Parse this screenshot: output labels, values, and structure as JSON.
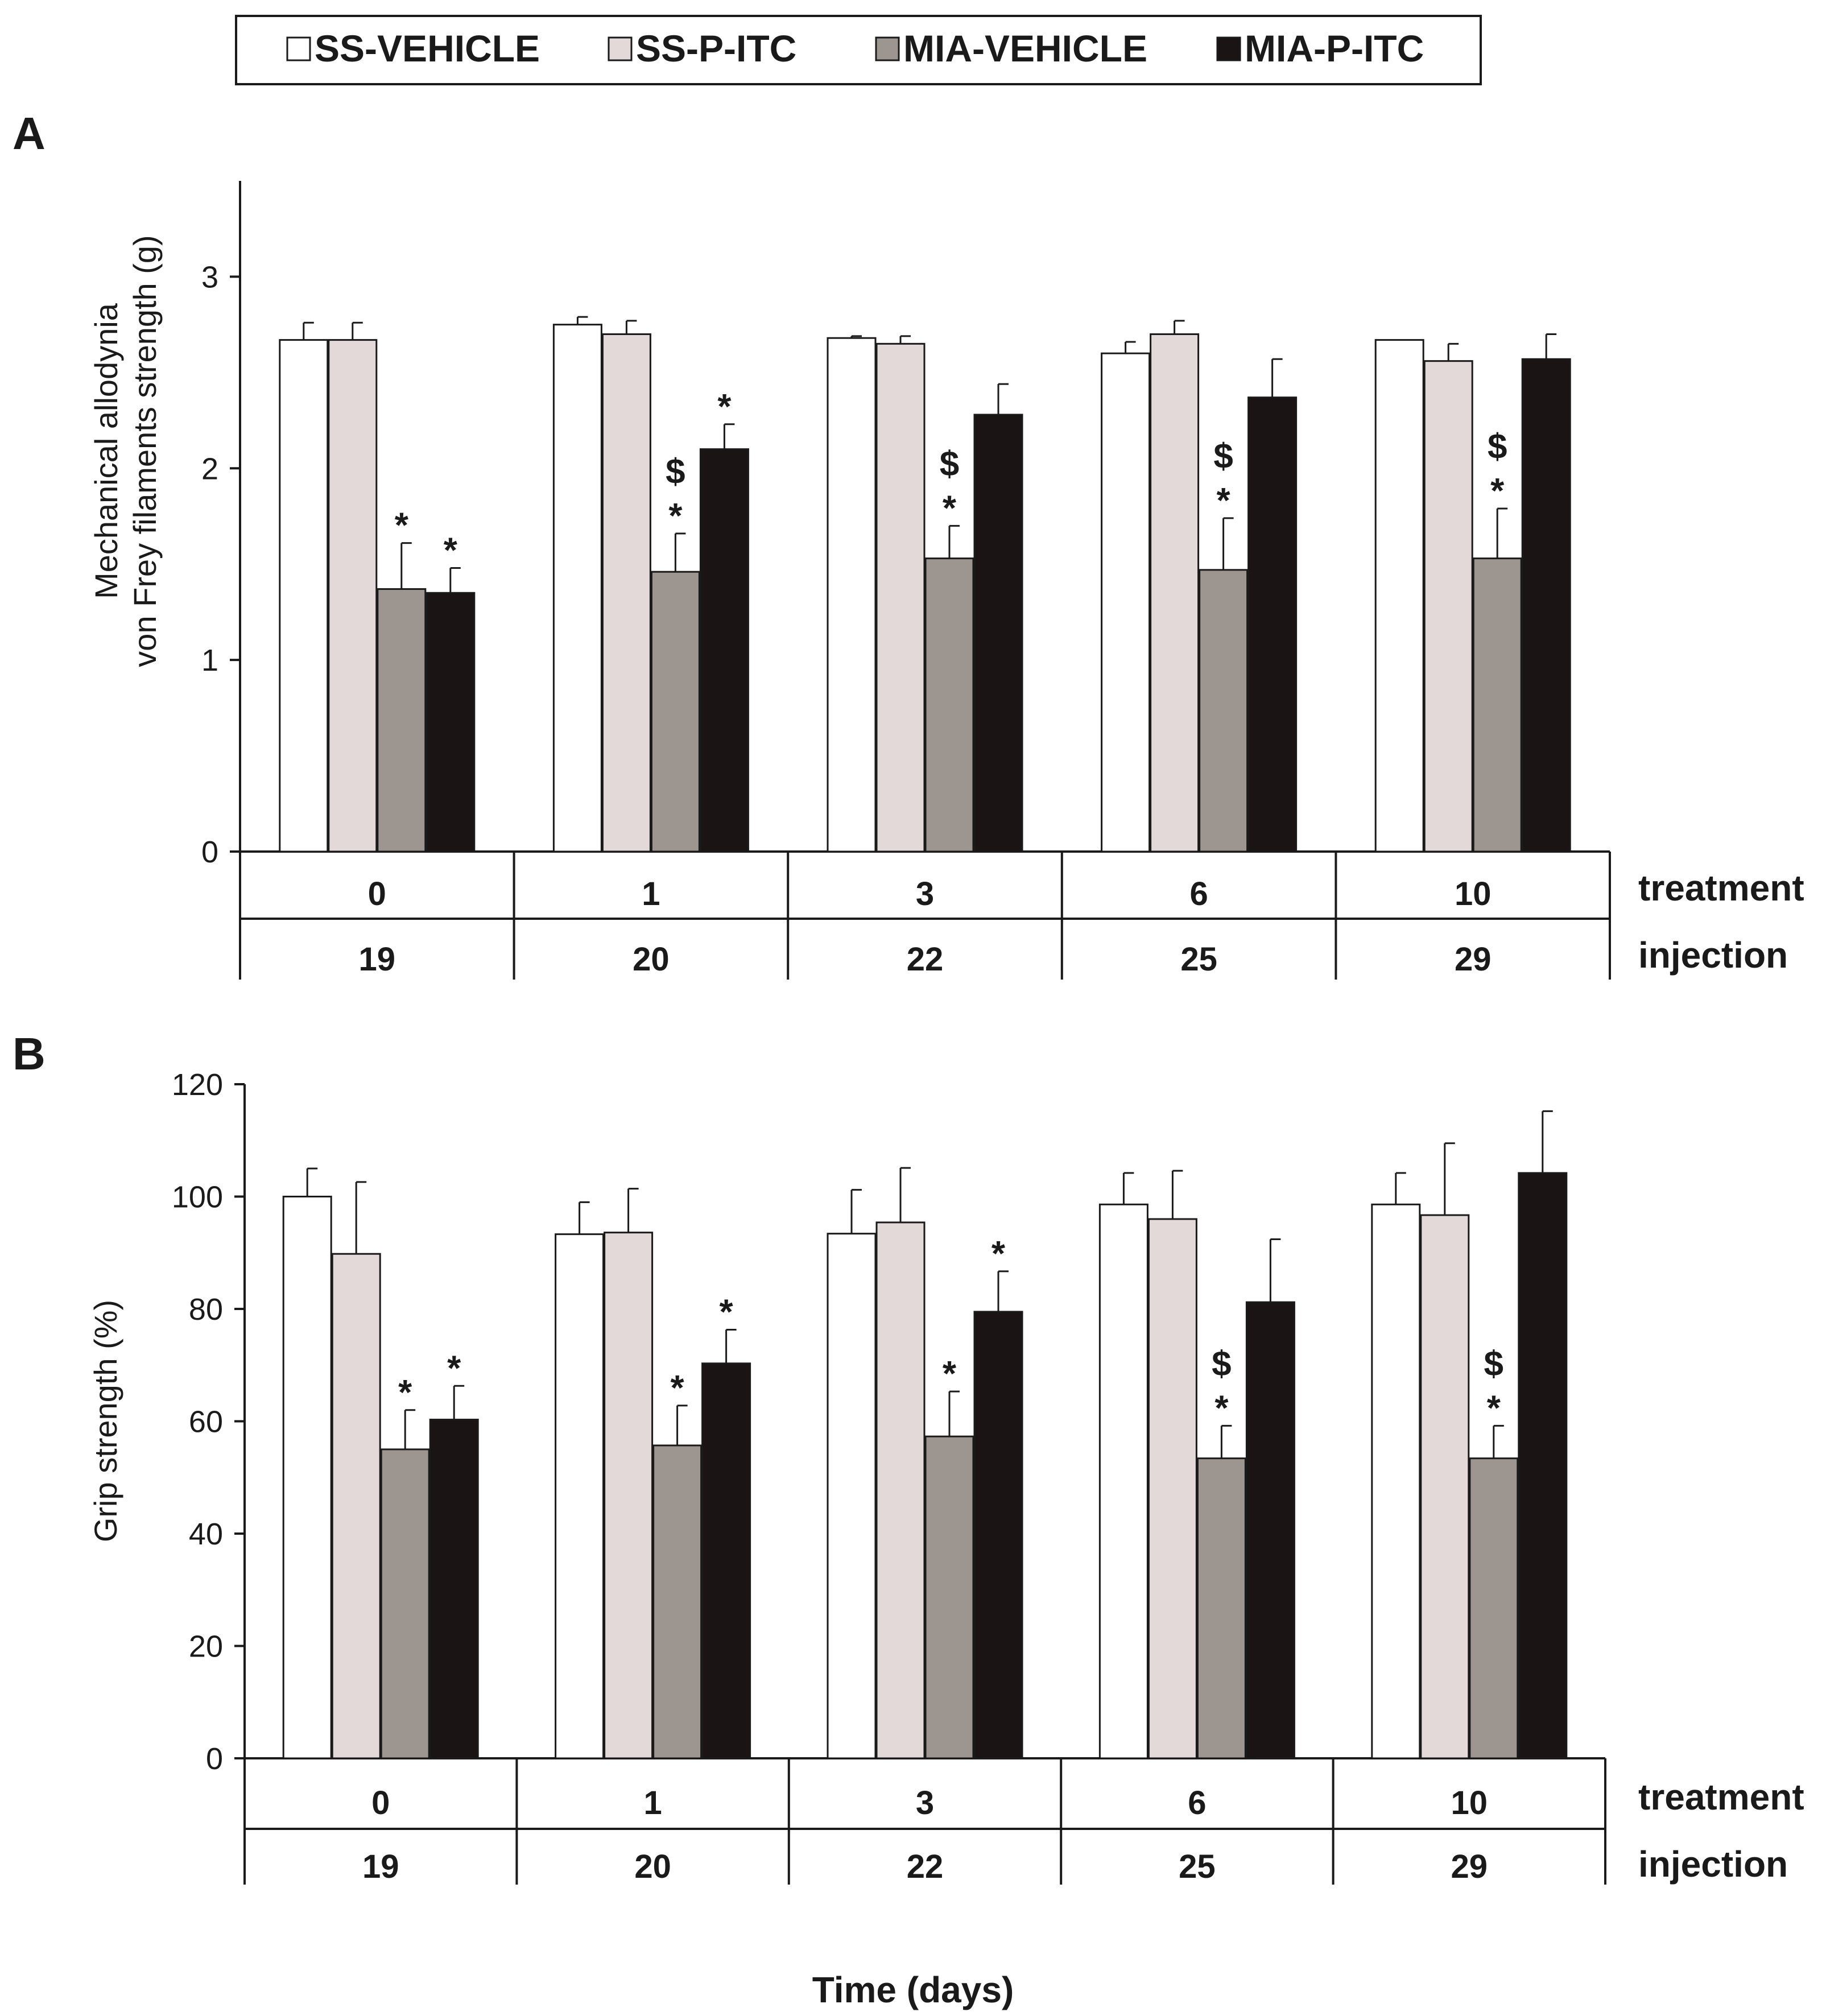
{
  "legend": [
    {
      "label": "SS-VEHICLE",
      "color": "#ffffff"
    },
    {
      "label": "SS-P-ITC",
      "color": "#e2d9d8"
    },
    {
      "label": "MIA-VEHICLE",
      "color": "#9c9590"
    },
    {
      "label": "MIA-P-ITC",
      "color": "#1b1414"
    }
  ],
  "xlabel": "Time (days)",
  "row_labels": {
    "treatment": "treatment",
    "injection": "injection"
  },
  "chart_data": [
    {
      "type": "bar",
      "panel": "A",
      "ylabel_lines": [
        "Mechanical allodynia",
        "von Frey filaments strength (g)"
      ],
      "ylim": [
        0,
        3.5
      ],
      "yticks": [
        0,
        1,
        2,
        3
      ],
      "categories_treatment": [
        "0",
        "1",
        "3",
        "6",
        "10"
      ],
      "categories_injection": [
        "19",
        "20",
        "22",
        "25",
        "29"
      ],
      "series": [
        {
          "name": "SS-VEHICLE",
          "values": [
            2.67,
            2.75,
            2.68,
            2.6,
            2.67
          ],
          "errors": [
            0.09,
            0.04,
            0.01,
            0.06,
            0.0
          ]
        },
        {
          "name": "SS-P-ITC",
          "values": [
            2.67,
            2.7,
            2.65,
            2.7,
            2.56
          ],
          "errors": [
            0.09,
            0.07,
            0.04,
            0.07,
            0.09
          ]
        },
        {
          "name": "MIA-VEHICLE",
          "values": [
            1.37,
            1.46,
            1.53,
            1.47,
            1.53
          ],
          "errors": [
            0.24,
            0.2,
            0.17,
            0.27,
            0.26
          ]
        },
        {
          "name": "MIA-P-ITC",
          "values": [
            1.35,
            2.1,
            2.28,
            2.37,
            2.57
          ],
          "errors": [
            0.13,
            0.13,
            0.16,
            0.2,
            0.13
          ]
        }
      ],
      "annotations": [
        {
          "category": 0,
          "series": 2,
          "text": "*"
        },
        {
          "category": 0,
          "series": 3,
          "text": "*"
        },
        {
          "category": 1,
          "series": 2,
          "text": "$*"
        },
        {
          "category": 1,
          "series": 3,
          "text": "*"
        },
        {
          "category": 2,
          "series": 2,
          "text": "$*"
        },
        {
          "category": 3,
          "series": 2,
          "text": "$*"
        },
        {
          "category": 4,
          "series": 2,
          "text": "$*"
        }
      ]
    },
    {
      "type": "bar",
      "panel": "B",
      "ylabel_lines": [
        "Grip strength (%)"
      ],
      "ylim": [
        0,
        120
      ],
      "yticks": [
        0,
        20,
        40,
        60,
        80,
        100,
        120
      ],
      "categories_treatment": [
        "0",
        "1",
        "3",
        "6",
        "10"
      ],
      "categories_injection": [
        "19",
        "20",
        "22",
        "25",
        "29"
      ],
      "series": [
        {
          "name": "SS-VEHICLE",
          "values": [
            100,
            93.3,
            93.4,
            98.6,
            98.6
          ],
          "errors": [
            5,
            5.7,
            7.8,
            5.6,
            5.6
          ]
        },
        {
          "name": "SS-P-ITC",
          "values": [
            89.8,
            93.6,
            95.4,
            96,
            96.7
          ],
          "errors": [
            12.8,
            7.8,
            9.7,
            8.6,
            12.8
          ]
        },
        {
          "name": "MIA-VEHICLE",
          "values": [
            55,
            55.7,
            57.3,
            53.4,
            53.4
          ],
          "errors": [
            7,
            7.1,
            8,
            5.8,
            5.8
          ]
        },
        {
          "name": "MIA-P-ITC",
          "values": [
            60.3,
            70.3,
            79.5,
            81.2,
            104.2
          ],
          "errors": [
            6,
            6,
            7.2,
            11.2,
            11
          ]
        }
      ],
      "annotations": [
        {
          "category": 0,
          "series": 2,
          "text": "*"
        },
        {
          "category": 0,
          "series": 3,
          "text": "*"
        },
        {
          "category": 1,
          "series": 2,
          "text": "*"
        },
        {
          "category": 1,
          "series": 3,
          "text": "*"
        },
        {
          "category": 2,
          "series": 2,
          "text": "*"
        },
        {
          "category": 2,
          "series": 3,
          "text": "*"
        },
        {
          "category": 3,
          "series": 2,
          "text": "$*"
        },
        {
          "category": 4,
          "series": 2,
          "text": "$*"
        }
      ]
    }
  ]
}
